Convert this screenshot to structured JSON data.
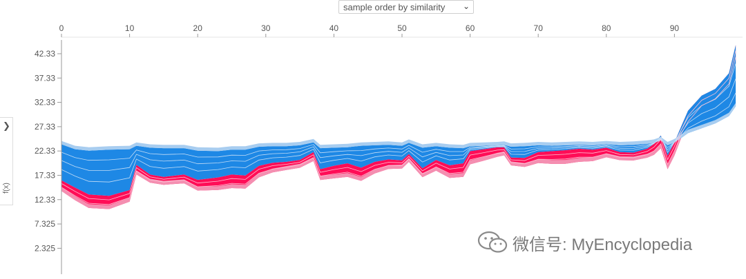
{
  "controls": {
    "order_select_value": "sample order by similarity",
    "order_select_icon": "chevron-down-icon",
    "side_toggle_icon": "chevron-right-icon",
    "ylabel": "f(x)"
  },
  "watermark": {
    "text": "微信号: MyEncyclopedia",
    "icon": "wechat-icon"
  },
  "colors": {
    "negative": "#1e88e5",
    "positive": "#ff0d57",
    "negative_light": "#a8cdf0",
    "positive_light": "#f48fb1",
    "separator": "#c4ddf6",
    "axis": "#999999"
  },
  "chart_data": {
    "type": "area",
    "x": [
      0,
      2,
      4,
      7,
      10,
      11,
      13,
      15,
      18,
      20,
      23,
      25,
      27,
      29,
      31,
      33,
      35,
      37,
      38,
      40,
      42,
      44,
      46,
      48,
      50,
      51,
      53,
      55,
      57,
      59,
      60,
      62,
      64,
      65,
      66,
      68,
      70,
      72,
      74,
      76,
      78,
      80,
      82,
      84,
      86,
      87,
      88,
      89,
      90,
      91,
      92,
      94,
      96,
      98,
      99
    ],
    "xlim": [
      0,
      100
    ],
    "ylim": [
      -3,
      47
    ],
    "x_ticks": [
      0,
      10,
      20,
      30,
      40,
      50,
      60,
      70,
      80,
      90
    ],
    "x_tick_labels": [
      "0",
      "10",
      "20",
      "30",
      "40",
      "50",
      "60",
      "70",
      "80",
      "90"
    ],
    "y_ticks": [
      2.325,
      7.325,
      12.33,
      17.33,
      22.33,
      27.33,
      32.33,
      37.33,
      42.33
    ],
    "y_tick_labels": [
      "2.325",
      "7.325",
      "12.33",
      "17.33",
      "22.33",
      "27.33",
      "32.33",
      "37.33",
      "42.33"
    ],
    "ylabel": "f(x)",
    "grid": false,
    "series": [
      {
        "values": [
          16.3,
          14.8,
          13.4,
          13.1,
          14.3,
          19.5,
          17.5,
          17.0,
          17.5,
          16.4,
          16.9,
          17.5,
          17.3,
          19.3,
          19.9,
          20.1,
          20.5,
          22.1,
          18.6,
          19.3,
          19.8,
          18.9,
          20.1,
          20.6,
          20.4,
          21.7,
          18.8,
          20.5,
          19.4,
          19.8,
          22.3,
          22.7,
          23.1,
          23.1,
          21.0,
          20.9,
          22.1,
          22.3,
          22.5,
          22.8,
          22.6,
          23.0,
          22.1,
          22.0,
          22.8,
          23.8,
          25.5,
          21.4,
          24.1,
          27.4,
          30.6,
          33.7,
          35.1,
          38.3,
          44.1
        ]
      },
      {
        "values": [
          23.7,
          22.7,
          22.4,
          22.6,
          22.7,
          23.4,
          23.0,
          22.9,
          22.9,
          22.4,
          22.3,
          22.6,
          22.6,
          23.2,
          23.3,
          23.3,
          23.5,
          24.1,
          22.9,
          23.0,
          23.1,
          23.4,
          23.5,
          23.6,
          23.4,
          24.0,
          23.0,
          23.3,
          23.0,
          22.9,
          23.3,
          23.4,
          23.5,
          23.6,
          23.2,
          23.3,
          23.5,
          23.4,
          23.5,
          23.6,
          23.5,
          23.7,
          23.5,
          23.6,
          23.8,
          24.0,
          24.5,
          23.5,
          24.1,
          25.0,
          26.0,
          27.0,
          28.0,
          29.5,
          31.5
        ]
      }
    ]
  }
}
